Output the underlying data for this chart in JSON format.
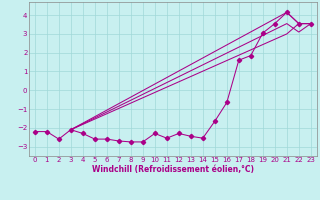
{
  "title": "",
  "xlabel": "Windchill (Refroidissement éolien,°C)",
  "bg_color": "#c8f0f0",
  "grid_color": "#a0d8d8",
  "line_color": "#aa0088",
  "xlim": [
    -0.5,
    23.5
  ],
  "ylim": [
    -3.5,
    4.7
  ],
  "xticks": [
    0,
    1,
    2,
    3,
    4,
    5,
    6,
    7,
    8,
    9,
    10,
    11,
    12,
    13,
    14,
    15,
    16,
    17,
    18,
    19,
    20,
    21,
    22,
    23
  ],
  "yticks": [
    -3,
    -2,
    -1,
    0,
    1,
    2,
    3,
    4
  ],
  "jagged_x": [
    0,
    1,
    2,
    3,
    4,
    5,
    6,
    7,
    8,
    9,
    10,
    11,
    12,
    13,
    14,
    15,
    16,
    17,
    18,
    19,
    20,
    21,
    22,
    23
  ],
  "jagged_y": [
    -2.2,
    -2.2,
    -2.6,
    -2.1,
    -2.3,
    -2.6,
    -2.6,
    -2.7,
    -2.75,
    -2.75,
    -2.3,
    -2.55,
    -2.3,
    -2.45,
    -2.55,
    -1.65,
    -0.65,
    1.6,
    1.85,
    3.05,
    3.55,
    4.15,
    3.55,
    3.55
  ],
  "ref_lines": [
    {
      "x": [
        3,
        21,
        22,
        23
      ],
      "y": [
        -2.1,
        4.15,
        3.55,
        3.55
      ]
    },
    {
      "x": [
        3,
        21,
        22,
        23
      ],
      "y": [
        -2.1,
        3.55,
        3.1,
        3.55
      ]
    },
    {
      "x": [
        3,
        21,
        22,
        23
      ],
      "y": [
        -2.1,
        3.0,
        3.55,
        3.55
      ]
    }
  ]
}
